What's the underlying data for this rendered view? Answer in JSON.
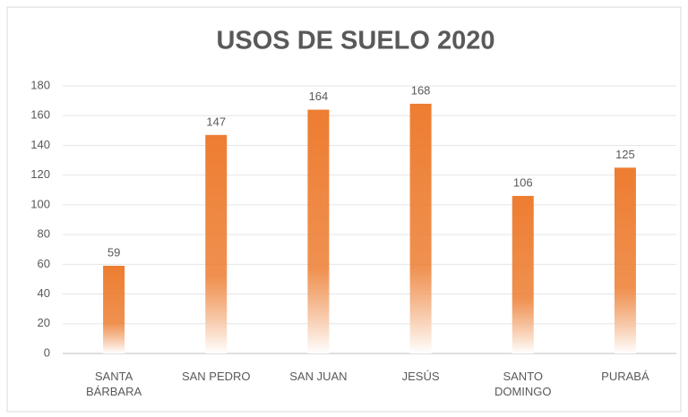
{
  "chart_data": {
    "type": "bar",
    "title": "USOS DE SUELO 2020",
    "categories": [
      "SANTA BÁRBARA",
      "SAN PEDRO",
      "SAN JUAN",
      "JESÚS",
      "SANTO DOMINGO",
      "PURABÁ"
    ],
    "values": [
      59,
      147,
      164,
      168,
      106,
      125
    ],
    "color": "#ed7d31",
    "ylim": [
      0,
      180
    ],
    "yticks": [
      0,
      20,
      40,
      60,
      80,
      100,
      120,
      140,
      160,
      180
    ],
    "grid": true
  }
}
